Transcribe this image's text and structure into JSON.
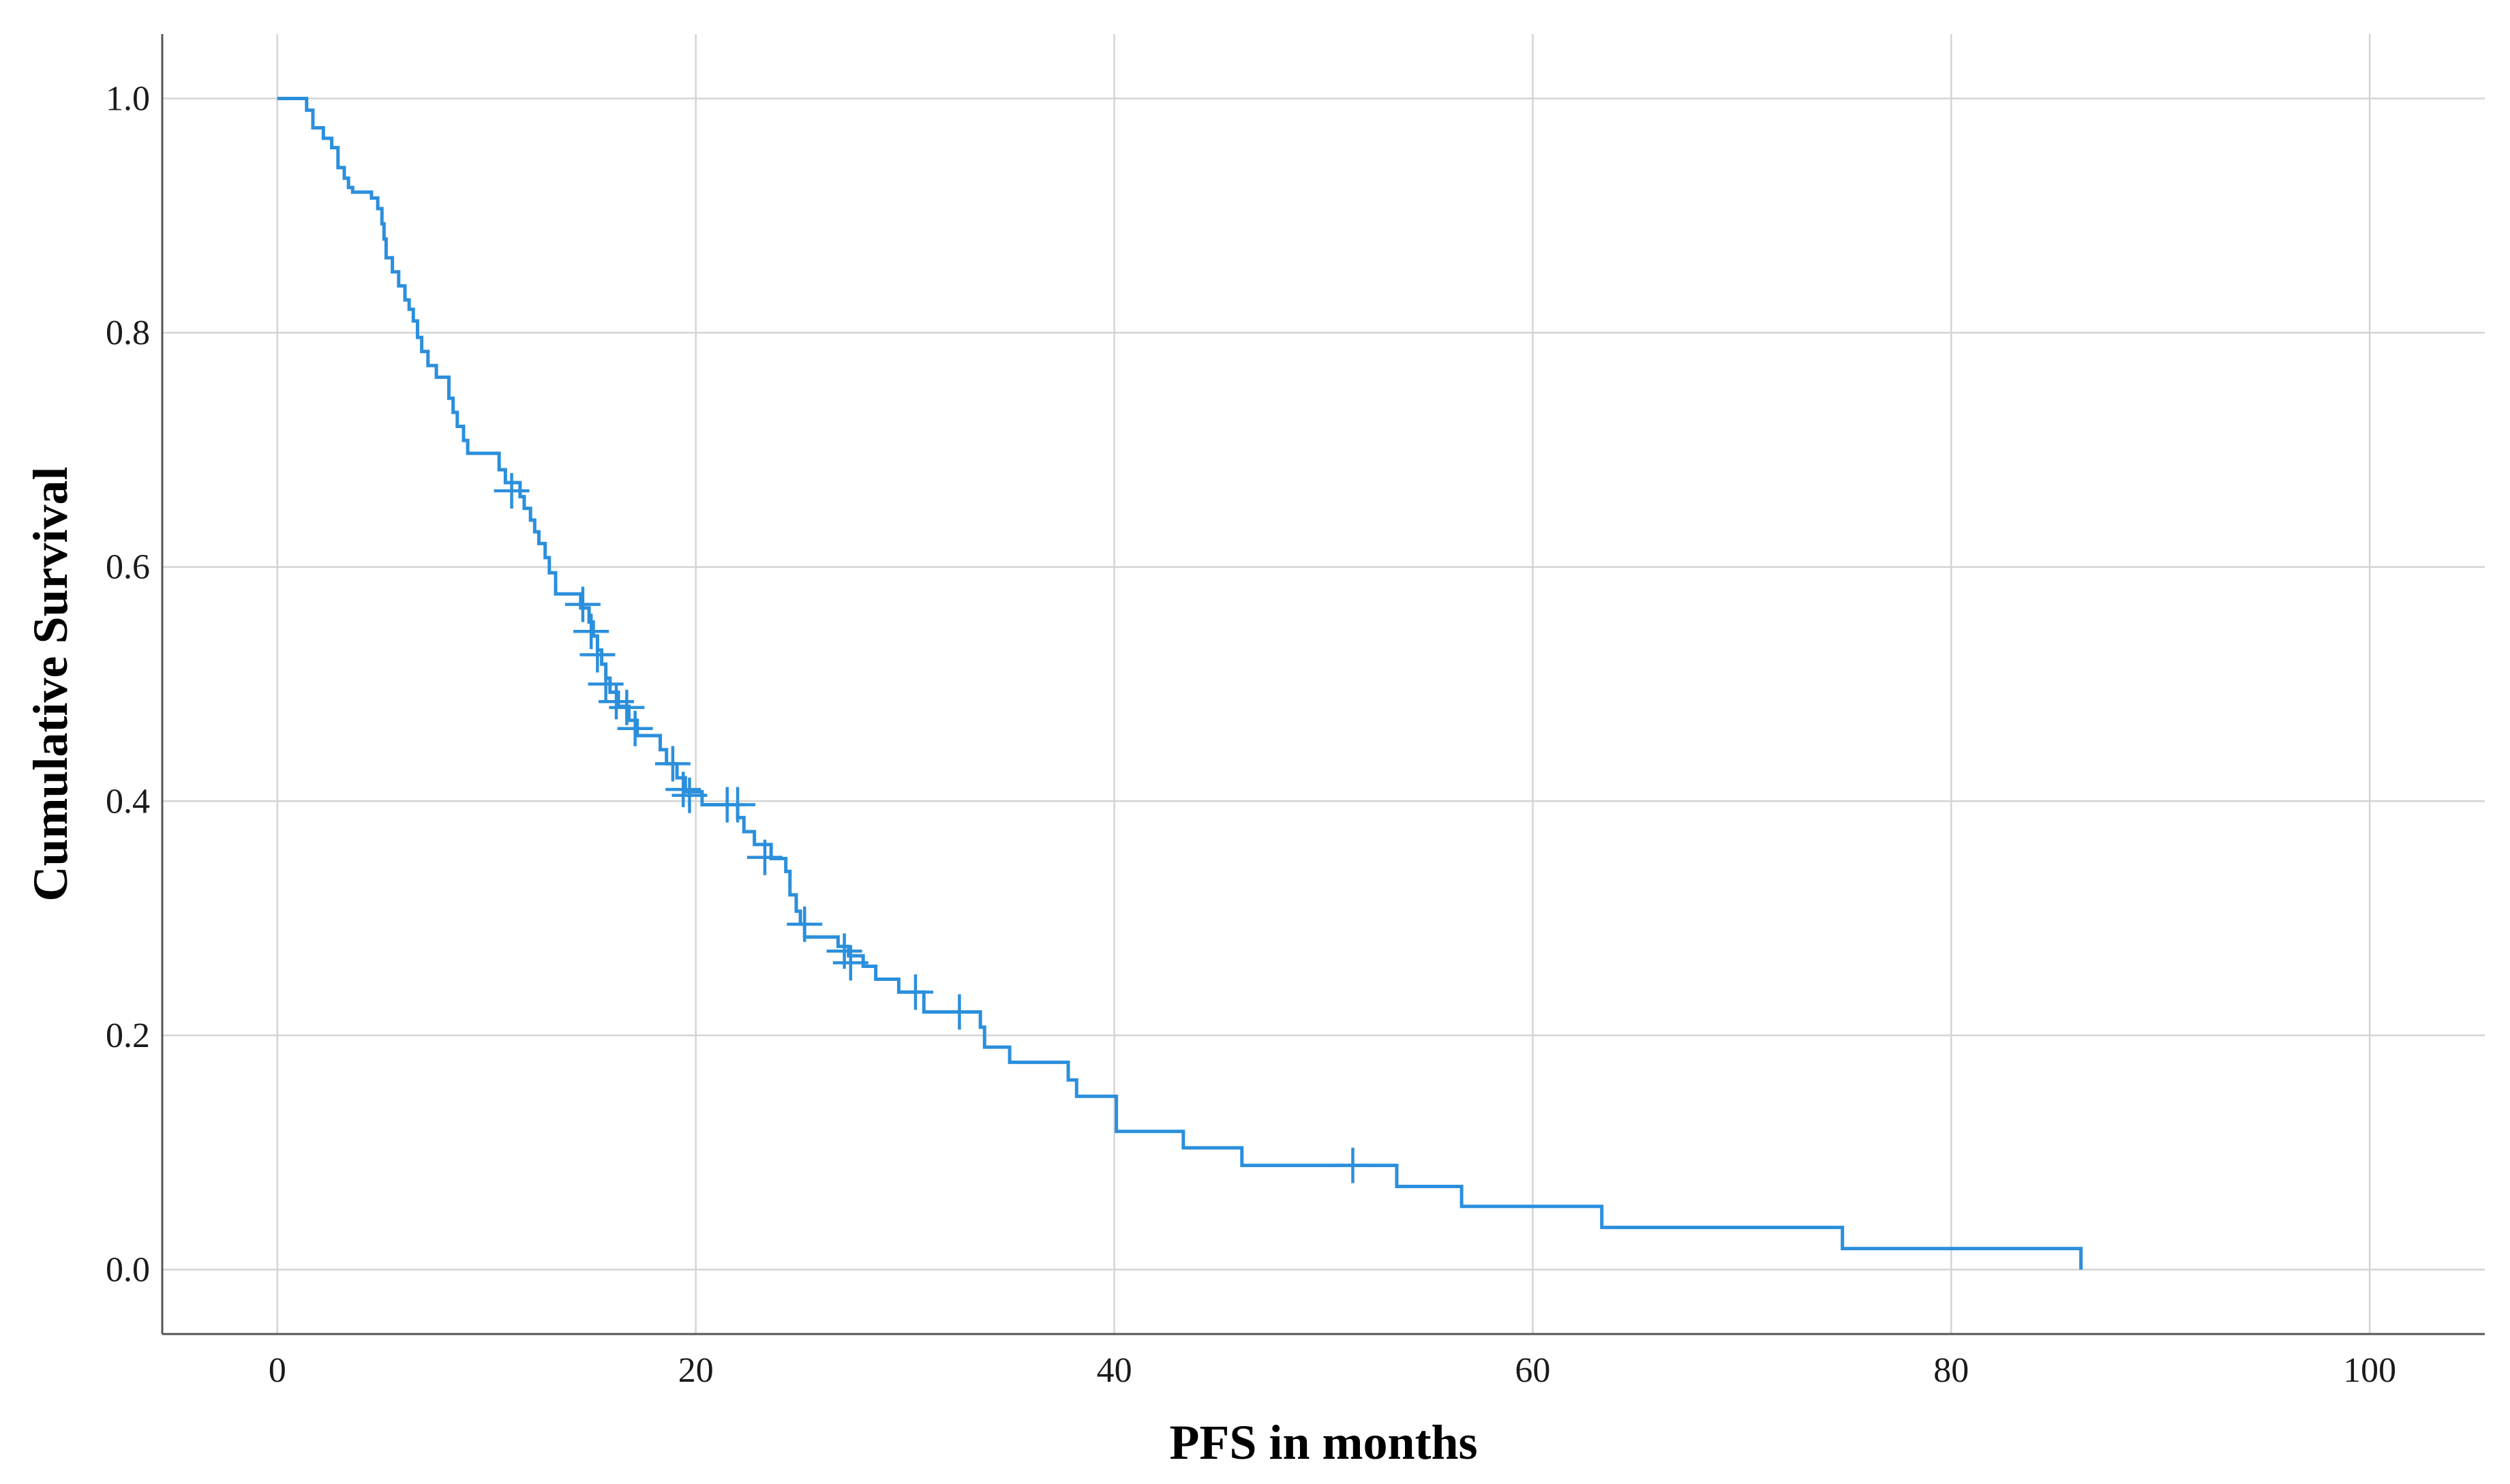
{
  "chart_data": {
    "type": "line",
    "xlabel": "PFS in months",
    "ylabel": "Cumulative Survival",
    "xlim": [
      -5.5,
      105.5
    ],
    "ylim": [
      -0.055,
      1.055
    ],
    "x_ticks": [
      0,
      20,
      40,
      60,
      80,
      100
    ],
    "y_ticks": [
      0.0,
      0.2,
      0.4,
      0.6,
      0.8,
      1.0
    ],
    "x_tick_labels": [
      "0",
      "20",
      "40",
      "60",
      "80",
      "100"
    ],
    "y_tick_labels": [
      "0.0",
      "0.2",
      "0.4",
      "0.6",
      "0.8",
      "1.0"
    ],
    "grid": true,
    "colors": {
      "line": "#2b8fdc",
      "grid": "#d4d4d4",
      "axis": "#555555"
    },
    "series": [
      {
        "style": "step",
        "points": [
          [
            0,
            1.0
          ],
          [
            1.4,
            0.99
          ],
          [
            1.7,
            0.975
          ],
          [
            2.2,
            0.966
          ],
          [
            2.6,
            0.958
          ],
          [
            2.9,
            0.941
          ],
          [
            3.2,
            0.932
          ],
          [
            3.4,
            0.924
          ],
          [
            3.6,
            0.92
          ],
          [
            4.5,
            0.915
          ],
          [
            4.8,
            0.906
          ],
          [
            5.0,
            0.893
          ],
          [
            5.1,
            0.88
          ],
          [
            5.2,
            0.864
          ],
          [
            5.5,
            0.852
          ],
          [
            5.8,
            0.84
          ],
          [
            6.1,
            0.828
          ],
          [
            6.3,
            0.82
          ],
          [
            6.5,
            0.81
          ],
          [
            6.7,
            0.796
          ],
          [
            6.9,
            0.784
          ],
          [
            7.2,
            0.772
          ],
          [
            7.6,
            0.762
          ],
          [
            8.2,
            0.744
          ],
          [
            8.4,
            0.732
          ],
          [
            8.6,
            0.72
          ],
          [
            8.9,
            0.708
          ],
          [
            9.1,
            0.697
          ],
          [
            10.6,
            0.683
          ],
          [
            10.9,
            0.672
          ],
          [
            11.6,
            0.66
          ],
          [
            11.8,
            0.65
          ],
          [
            12.1,
            0.64
          ],
          [
            12.3,
            0.63
          ],
          [
            12.5,
            0.62
          ],
          [
            12.8,
            0.608
          ],
          [
            13.0,
            0.595
          ],
          [
            13.3,
            0.577
          ],
          [
            14.5,
            0.565
          ],
          [
            14.9,
            0.553
          ],
          [
            15.1,
            0.541
          ],
          [
            15.3,
            0.529
          ],
          [
            15.5,
            0.517
          ],
          [
            15.7,
            0.505
          ],
          [
            15.9,
            0.493
          ],
          [
            16.3,
            0.481
          ],
          [
            16.8,
            0.469
          ],
          [
            17.2,
            0.456
          ],
          [
            18.3,
            0.444
          ],
          [
            18.6,
            0.432
          ],
          [
            19.1,
            0.42
          ],
          [
            19.5,
            0.408
          ],
          [
            20.3,
            0.397
          ],
          [
            22.0,
            0.386
          ],
          [
            22.3,
            0.374
          ],
          [
            22.8,
            0.363
          ],
          [
            23.6,
            0.351
          ],
          [
            24.3,
            0.34
          ],
          [
            24.5,
            0.32
          ],
          [
            24.8,
            0.306
          ],
          [
            25.0,
            0.295
          ],
          [
            25.2,
            0.284
          ],
          [
            26.8,
            0.276
          ],
          [
            27.3,
            0.268
          ],
          [
            28.0,
            0.259
          ],
          [
            28.6,
            0.248
          ],
          [
            29.7,
            0.237
          ],
          [
            30.9,
            0.22
          ],
          [
            33.6,
            0.207
          ],
          [
            33.8,
            0.19
          ],
          [
            35.0,
            0.177
          ],
          [
            37.8,
            0.162
          ],
          [
            38.2,
            0.148
          ],
          [
            40.1,
            0.118
          ],
          [
            43.3,
            0.104
          ],
          [
            46.1,
            0.089
          ],
          [
            53.5,
            0.071
          ],
          [
            56.6,
            0.054
          ],
          [
            63.3,
            0.036
          ],
          [
            74.8,
            0.018
          ],
          [
            86.2,
            0.0
          ]
        ],
        "censored": [
          [
            11.2,
            0.665
          ],
          [
            14.6,
            0.568
          ],
          [
            15.0,
            0.545
          ],
          [
            15.3,
            0.525
          ],
          [
            15.7,
            0.5
          ],
          [
            16.2,
            0.485
          ],
          [
            16.7,
            0.48
          ],
          [
            17.1,
            0.462
          ],
          [
            18.9,
            0.432
          ],
          [
            19.4,
            0.41
          ],
          [
            19.7,
            0.405
          ],
          [
            21.5,
            0.397
          ],
          [
            22.0,
            0.397
          ],
          [
            23.3,
            0.352
          ],
          [
            25.2,
            0.295
          ],
          [
            27.1,
            0.272
          ],
          [
            27.4,
            0.262
          ],
          [
            30.5,
            0.237
          ],
          [
            32.6,
            0.22
          ],
          [
            51.4,
            0.089
          ]
        ]
      }
    ]
  }
}
